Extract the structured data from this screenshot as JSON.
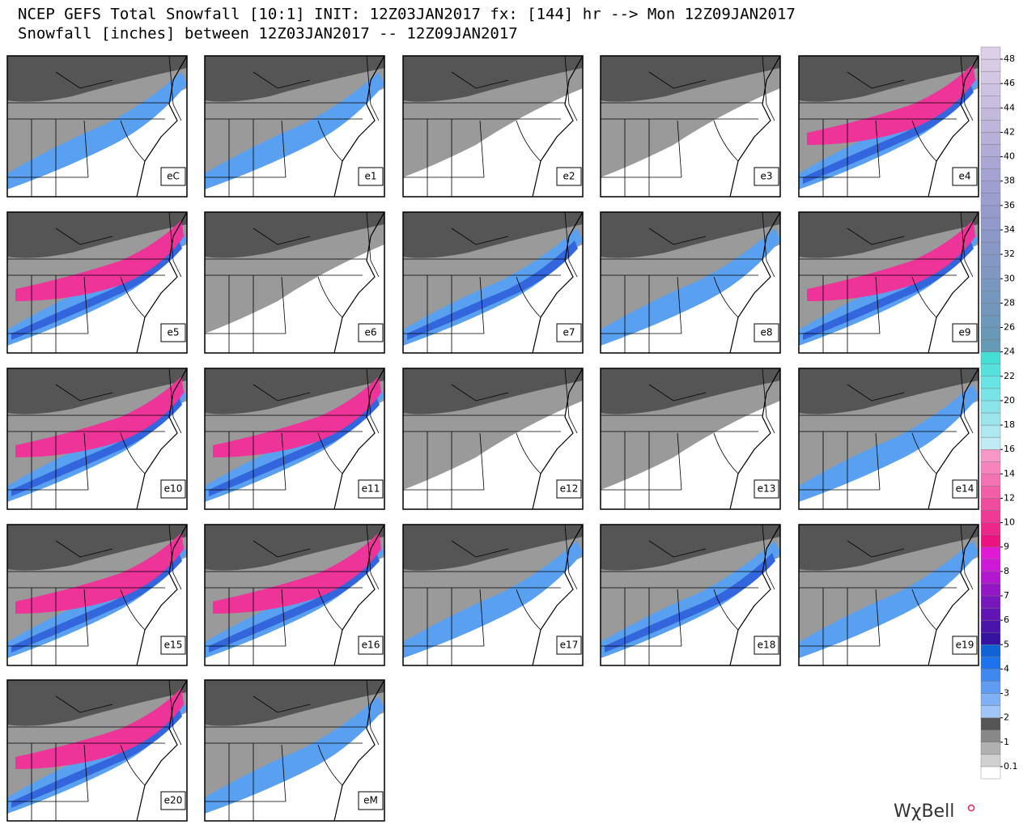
{
  "header": {
    "title": "NCEP GEFS Total Snowfall [10:1] INIT: 12Z03JAN2017 fx: [144] hr --> Mon 12Z09JAN2017",
    "subtitle": "Snowfall [inches] between 12Z03JAN2017 -- 12Z09JAN2017"
  },
  "panels": [
    "eC",
    "e1",
    "e2",
    "e3",
    "e4",
    "e5",
    "e6",
    "e7",
    "e8",
    "e9",
    "e10",
    "e11",
    "e12",
    "e13",
    "e14",
    "e15",
    "e16",
    "e17",
    "e18",
    "e19",
    "e20",
    "eM"
  ],
  "colorbar": {
    "ticks": [
      0.1,
      1,
      2,
      3,
      4,
      5,
      6,
      7,
      8,
      9,
      10,
      12,
      14,
      16,
      18,
      20,
      22,
      24,
      26,
      28,
      30,
      32,
      34,
      36,
      38,
      40,
      42,
      44,
      46,
      48
    ]
  },
  "logo": "WχBell"
}
